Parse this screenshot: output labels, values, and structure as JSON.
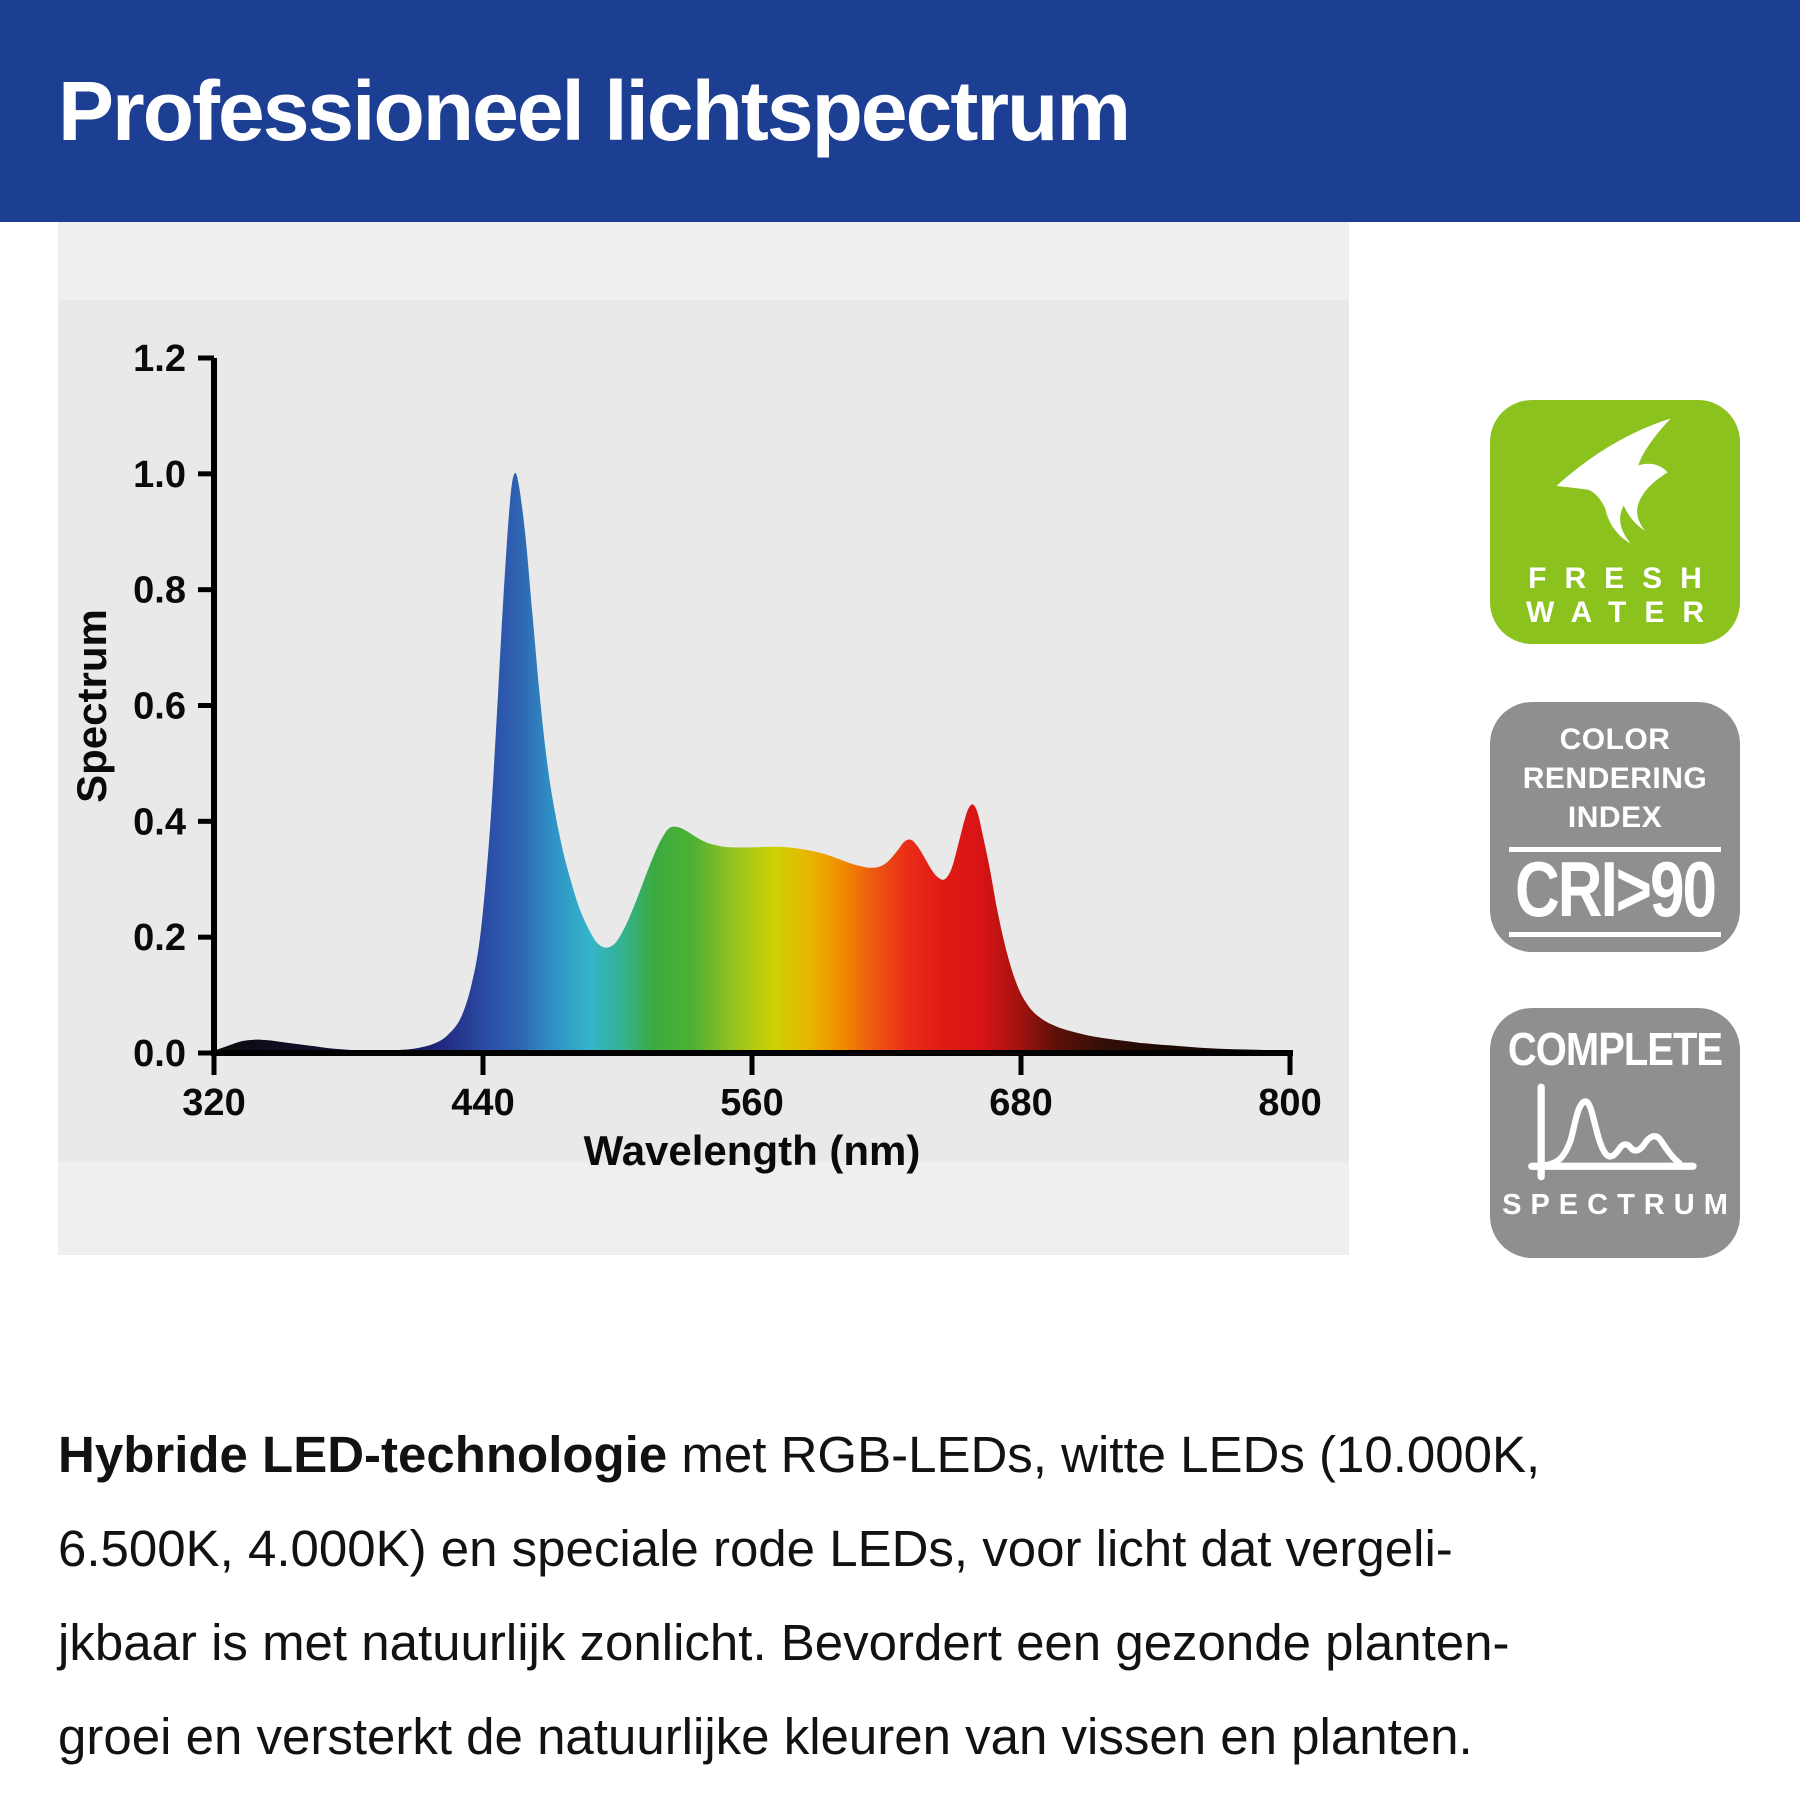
{
  "header": {
    "title": "Professioneel lichtspectrum",
    "bg_color": "#1c3e93",
    "text_color": "#ffffff"
  },
  "chart_data": {
    "type": "area",
    "title": "",
    "xlabel": "Wavelength (nm)",
    "ylabel": "Spectrum",
    "xlim": [
      320,
      800
    ],
    "ylim": [
      0,
      1.2
    ],
    "x_ticks": [
      320,
      440,
      560,
      680,
      800
    ],
    "y_ticks": [
      0.0,
      0.2,
      0.4,
      0.6,
      0.8,
      1.0,
      1.2
    ],
    "grid": false,
    "legend": "none",
    "fill": "spectral-wavelength-gradient",
    "gradient_stops": [
      [
        320,
        "#0b0b0e"
      ],
      [
        400,
        "#12123f"
      ],
      [
        420,
        "#22267d"
      ],
      [
        442,
        "#2a4da5"
      ],
      [
        456,
        "#2f63b2"
      ],
      [
        470,
        "#2f8fc5"
      ],
      [
        488,
        "#35b5cb"
      ],
      [
        502,
        "#34b295"
      ],
      [
        516,
        "#3aaa3f"
      ],
      [
        534,
        "#4fb134"
      ],
      [
        552,
        "#96c31f"
      ],
      [
        570,
        "#cfd202"
      ],
      [
        586,
        "#e9b400"
      ],
      [
        600,
        "#ef8c00"
      ],
      [
        614,
        "#ee5a10"
      ],
      [
        628,
        "#e93016"
      ],
      [
        645,
        "#e21a16"
      ],
      [
        662,
        "#d81414"
      ],
      [
        678,
        "#a81310"
      ],
      [
        695,
        "#611007"
      ],
      [
        715,
        "#351006"
      ],
      [
        745,
        "#1c0a04"
      ],
      [
        800,
        "#0e0503"
      ]
    ],
    "points": [
      [
        320,
        0.004
      ],
      [
        326,
        0.012
      ],
      [
        332,
        0.02
      ],
      [
        338,
        0.023
      ],
      [
        344,
        0.022
      ],
      [
        350,
        0.019
      ],
      [
        356,
        0.016
      ],
      [
        364,
        0.012
      ],
      [
        372,
        0.008
      ],
      [
        382,
        0.005
      ],
      [
        392,
        0.004
      ],
      [
        402,
        0.005
      ],
      [
        410,
        0.008
      ],
      [
        418,
        0.016
      ],
      [
        424,
        0.03
      ],
      [
        430,
        0.06
      ],
      [
        435,
        0.12
      ],
      [
        439,
        0.21
      ],
      [
        443,
        0.38
      ],
      [
        446,
        0.57
      ],
      [
        449,
        0.78
      ],
      [
        452,
        0.95
      ],
      [
        454,
        1.0
      ],
      [
        456,
        0.98
      ],
      [
        459,
        0.89
      ],
      [
        462,
        0.76
      ],
      [
        465,
        0.63
      ],
      [
        468,
        0.52
      ],
      [
        471,
        0.44
      ],
      [
        475,
        0.36
      ],
      [
        479,
        0.3
      ],
      [
        483,
        0.25
      ],
      [
        487,
        0.215
      ],
      [
        491,
        0.19
      ],
      [
        495,
        0.182
      ],
      [
        499,
        0.19
      ],
      [
        503,
        0.215
      ],
      [
        507,
        0.25
      ],
      [
        511,
        0.29
      ],
      [
        515,
        0.33
      ],
      [
        519,
        0.365
      ],
      [
        523,
        0.388
      ],
      [
        527,
        0.39
      ],
      [
        531,
        0.383
      ],
      [
        535,
        0.373
      ],
      [
        540,
        0.363
      ],
      [
        546,
        0.357
      ],
      [
        552,
        0.355
      ],
      [
        560,
        0.355
      ],
      [
        568,
        0.356
      ],
      [
        576,
        0.355
      ],
      [
        584,
        0.351
      ],
      [
        592,
        0.344
      ],
      [
        600,
        0.333
      ],
      [
        606,
        0.325
      ],
      [
        612,
        0.32
      ],
      [
        617,
        0.322
      ],
      [
        621,
        0.332
      ],
      [
        625,
        0.35
      ],
      [
        628,
        0.365
      ],
      [
        631,
        0.368
      ],
      [
        634,
        0.356
      ],
      [
        637,
        0.337
      ],
      [
        640,
        0.317
      ],
      [
        643,
        0.303
      ],
      [
        646,
        0.3
      ],
      [
        649,
        0.318
      ],
      [
        652,
        0.36
      ],
      [
        655,
        0.405
      ],
      [
        657,
        0.425
      ],
      [
        659,
        0.428
      ],
      [
        661,
        0.41
      ],
      [
        663,
        0.375
      ],
      [
        666,
        0.32
      ],
      [
        669,
        0.255
      ],
      [
        672,
        0.2
      ],
      [
        675,
        0.155
      ],
      [
        678,
        0.12
      ],
      [
        681,
        0.095
      ],
      [
        685,
        0.073
      ],
      [
        690,
        0.057
      ],
      [
        695,
        0.047
      ],
      [
        700,
        0.04
      ],
      [
        708,
        0.032
      ],
      [
        716,
        0.026
      ],
      [
        724,
        0.022
      ],
      [
        732,
        0.018
      ],
      [
        740,
        0.015
      ],
      [
        750,
        0.012
      ],
      [
        760,
        0.009
      ],
      [
        770,
        0.007
      ],
      [
        780,
        0.006
      ],
      [
        790,
        0.005
      ],
      [
        800,
        0.004
      ]
    ],
    "annotations": {
      "blue_peak": {
        "wavelength": 454,
        "value": 1.0
      },
      "green_bump": {
        "wavelength": 525,
        "value": 0.39
      },
      "red_bump": {
        "wavelength": 630,
        "value": 0.37
      },
      "red_peak": {
        "wavelength": 658,
        "value": 0.43
      }
    }
  },
  "badges": {
    "freshwater": {
      "bg_color": "#8cc21e",
      "line1": "FRESH",
      "line2": "WATER",
      "icon": "angelfish-icon"
    },
    "cri": {
      "bg_color": "#8f8f91",
      "line1": "COLOR",
      "line2": "RENDERING",
      "line3": "INDEX",
      "value": "CRI>90"
    },
    "complete_spectrum": {
      "bg_color": "#8f8f91",
      "top": "COMPLETE",
      "bottom": "SPECTRUM",
      "icon": "spectrum-curve-icon"
    }
  },
  "paragraph": {
    "bold_lead": "Hybride LED-technologie",
    "line1_rest": " met RGB-LEDs, witte LEDs (10.000K,",
    "line2": "6.500K, 4.000K) en speciale rode LEDs, voor licht dat vergeli-",
    "line3": "jkbaar is met natuurlijk zonlicht. Bevordert een gezonde planten-",
    "line4": "groei en versterkt de natuurlijke kleuren van vissen en planten."
  }
}
